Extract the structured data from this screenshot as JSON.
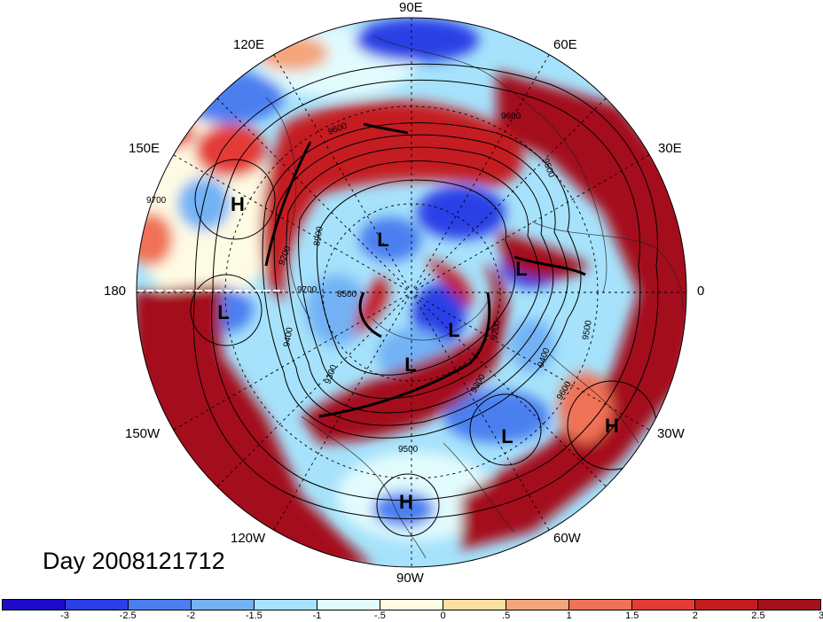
{
  "lon_labels": {
    "top": "90E",
    "upper_left": "120E",
    "upper_right": "60E",
    "left_upper": "150E",
    "right_upper": "30E",
    "left": "180",
    "right": "0",
    "left_lower": "150W",
    "right_lower": "30W",
    "lower_left": "120W",
    "lower_right": "60W",
    "bottom": "90W"
  },
  "date_label": "Day 2008121712",
  "pressure_centers": [
    {
      "letter": "H",
      "name": "high-120E"
    },
    {
      "letter": "L",
      "name": "low-180"
    },
    {
      "letter": "L",
      "name": "low-siberia"
    },
    {
      "letter": "L",
      "name": "low-europe"
    },
    {
      "letter": "L",
      "name": "low-pole-east"
    },
    {
      "letter": "L",
      "name": "low-pole-west"
    },
    {
      "letter": "L",
      "name": "low-atlantic"
    },
    {
      "letter": "H",
      "name": "high-atlantic"
    },
    {
      "letter": "H",
      "name": "high-mexico"
    }
  ],
  "contour_labels": [
    "9700",
    "9600",
    "9500",
    "8900",
    "9200",
    "8500",
    "9400",
    "9300",
    "9200",
    "9600",
    "9700",
    "9600",
    "9500",
    "9400",
    "9300",
    "9500"
  ],
  "colorbar": {
    "colors": [
      "#1c0cc8",
      "#2a40e6",
      "#4b7ff0",
      "#72b2f5",
      "#a6e2fb",
      "#e2fbfd",
      "#fefbe4",
      "#fbe0a0",
      "#f4a57a",
      "#f07256",
      "#e53b37",
      "#c51c22",
      "#a4111a"
    ],
    "labels": [
      "-3",
      "-2.5",
      "-2",
      "-1.5",
      "-1",
      "-.5",
      "0",
      ".5",
      "1",
      "1.5",
      "2",
      "2.5",
      "3"
    ]
  }
}
